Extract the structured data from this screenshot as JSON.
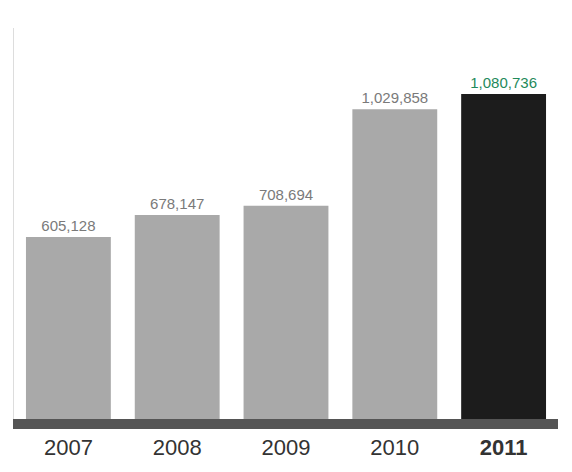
{
  "chart_data": {
    "type": "bar",
    "categories": [
      "2007",
      "2008",
      "2009",
      "2010",
      "2011"
    ],
    "values": [
      605128,
      678147,
      708694,
      1029858,
      1080736
    ],
    "value_labels": [
      "605,128",
      "678,147",
      "708,694",
      "1,029,858",
      "1,080,736"
    ],
    "colors": [
      "#a9a9a9",
      "#a9a9a9",
      "#a9a9a9",
      "#a9a9a9",
      "#1c1c1c"
    ],
    "ylim": [
      0,
      1300000
    ],
    "data_labels": true,
    "tick_labels": "x",
    "grid": false
  }
}
